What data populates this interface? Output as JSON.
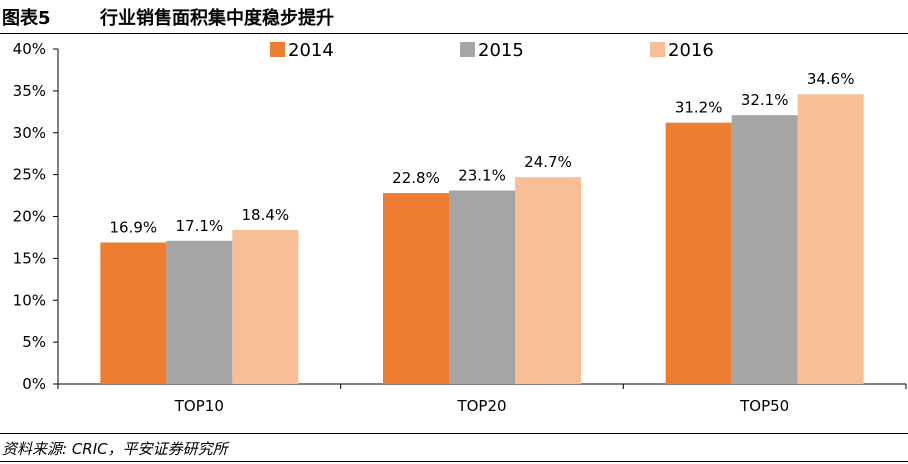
{
  "figure": {
    "label": "图表5",
    "title": "行业销售面积集中度稳步提升",
    "source": "资料来源: CRIC，平安证券研究所"
  },
  "colors": {
    "2014": "#ED7D31",
    "2015": "#A5A5A5",
    "2016": "#F8BF96",
    "axis": "#000000"
  },
  "chart_data": {
    "type": "bar",
    "title": "行业销售面积集中度稳步提升",
    "categories": [
      "TOP10",
      "TOP20",
      "TOP50"
    ],
    "series": [
      {
        "name": "2014",
        "values": [
          16.9,
          22.8,
          31.2
        ],
        "labels": [
          "16.9%",
          "22.8%",
          "31.2%"
        ]
      },
      {
        "name": "2015",
        "values": [
          17.1,
          23.1,
          32.1
        ],
        "labels": [
          "17.1%",
          "23.1%",
          "32.1%"
        ]
      },
      {
        "name": "2016",
        "values": [
          18.4,
          24.7,
          34.6
        ],
        "labels": [
          "18.4%",
          "24.7%",
          "34.6%"
        ]
      }
    ],
    "yticks": [
      "0%",
      "5%",
      "10%",
      "15%",
      "20%",
      "25%",
      "30%",
      "35%",
      "40%"
    ],
    "ylim": [
      0,
      40
    ],
    "xlabel": "",
    "ylabel": "",
    "legend": "top",
    "grid": false
  }
}
